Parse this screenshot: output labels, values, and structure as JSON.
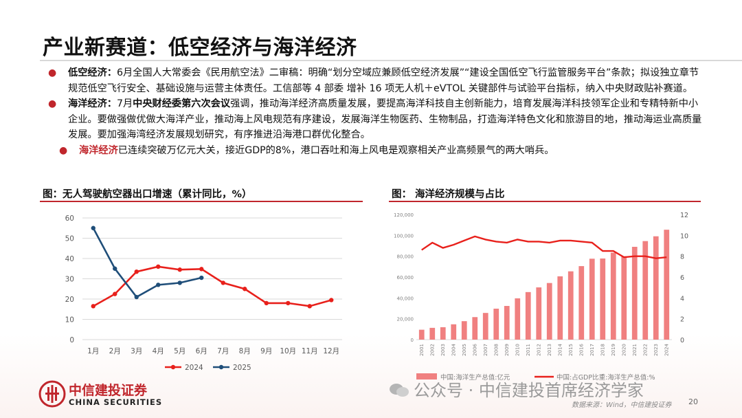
{
  "title": "产业新赛道：低空经济与海洋经济",
  "bullets": [
    {
      "keyword": "低空经济：",
      "text": "6月全国人大常委会《民用航空法》二审稿：明确“划分空域应兼顾低空经济发展”“建设全国低空飞行监管服务平台”条款；拟设独立章节规范低空飞行安全、基础设施与运营主体责任。工信部等 4 部委 增补 16 项无人机＋eVTOL 关键部件与试验平台指标，纳入中央财政贴补赛道。"
    },
    {
      "keyword": "海洋经济：",
      "text_pre": "7月",
      "highlight": "中央财经委第六次会议",
      "text_post": "强调，推动海洋经济高质量发展，要提高海洋科技自主创新能力，培育发展海洋科技领军企业和专精特新中小企业。要做强做优做大海洋产业，推动海上风电规范有序建设，发展海洋生物医药、生物制品，打造海洋特色文化和旅游目的地，推动海运业高质量发展。要加强海湾经济发展规划研究，有序推进沿海港口群优化整合。"
    },
    {
      "keyword": "海洋经济",
      "text": "已连续突破万亿元大关，接近GDP的8%，港口吞吐和海上风电是观察相关产业高频景气的两大哨兵。"
    }
  ],
  "left_chart_title": "图：无人驾驶航空器出口增速（累计同比，%）",
  "right_chart_title": "图： 海洋经济规模与占比",
  "colors": {
    "accent_red": "#c0262c",
    "series_2024": "#e8201b",
    "series_2025": "#1f4e79",
    "bar": "#f08080",
    "line_right": "#e8201b"
  },
  "chart_data": [
    {
      "type": "line",
      "categories": [
        "1月",
        "2月",
        "3月",
        "4月",
        "5月",
        "6月",
        "7月",
        "8月",
        "9月",
        "10月",
        "11月",
        "12月"
      ],
      "series": [
        {
          "name": "2024",
          "values": [
            16.5,
            22.5,
            33.5,
            36,
            34.5,
            34.8,
            28,
            25,
            18,
            18,
            16.5,
            19.5
          ]
        },
        {
          "name": "2025",
          "values": [
            55,
            35,
            21,
            27,
            28,
            30.5,
            null,
            null,
            null,
            null,
            null,
            null
          ]
        }
      ],
      "ylim": [
        0,
        60
      ],
      "yticks": [
        0,
        10,
        20,
        30,
        40,
        50,
        60
      ],
      "legend": "bottom"
    },
    {
      "type": "bar",
      "categories": [
        "2001",
        "2002",
        "2003",
        "2004",
        "2005",
        "2006",
        "2007",
        "2008",
        "2009",
        "2010",
        "2011",
        "2012",
        "2013",
        "2014",
        "2015",
        "2016",
        "2017",
        "2018",
        "2019",
        "2020",
        "2021",
        "2022",
        "2023",
        "2024"
      ],
      "series": [
        {
          "name": "中国:海洋生产总值:亿元",
          "axis": "left",
          "values": [
            9500,
            11300,
            11900,
            14700,
            17700,
            21600,
            25600,
            29700,
            32300,
            39600,
            45600,
            50100,
            54300,
            60700,
            65500,
            70500,
            77600,
            77800,
            83400,
            80000,
            89000,
            94500,
            99100,
            105400
          ]
        },
        {
          "name": "中国:占GDP比重:海洋生产总值:%",
          "axis": "right",
          "type": "line",
          "values": [
            8.6,
            9.3,
            8.8,
            9.1,
            9.5,
            9.9,
            9.6,
            9.4,
            9.3,
            9.6,
            9.4,
            9.4,
            9.3,
            9.5,
            9.5,
            9.4,
            9.3,
            8.5,
            8.5,
            7.9,
            8.0,
            8.0,
            7.8,
            7.9
          ]
        }
      ],
      "ylim_left": [
        0,
        120000
      ],
      "yticks_left": [
        "0",
        "20,000",
        "40,000",
        "60,000",
        "80,000",
        "100,000",
        "120,000"
      ],
      "ylim_right": [
        0,
        12
      ],
      "yticks_right": [
        0,
        2,
        4,
        6,
        8,
        10,
        12
      ],
      "legend": "bottom"
    }
  ],
  "logo": {
    "cn": "中信建投证券",
    "en": "CHINA SECURITIES"
  },
  "watermark": "公众号 · 中信建投首席经济学家",
  "source": "数据来源：Wind，中信建投证券",
  "page_number": "20"
}
